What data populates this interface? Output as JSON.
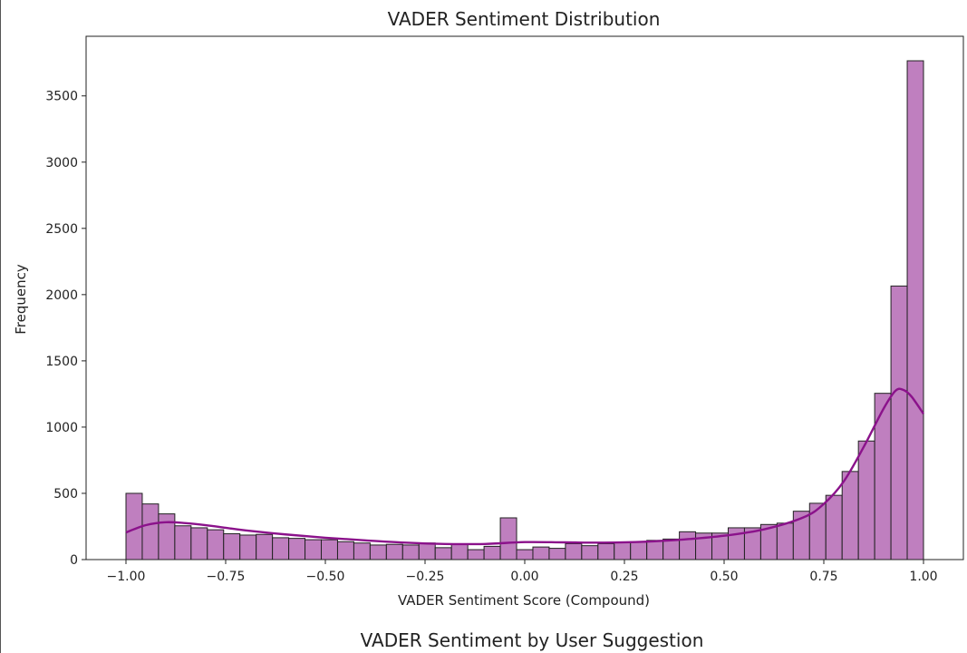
{
  "chart_data": {
    "type": "bar",
    "title": "VADER Sentiment Distribution",
    "xlabel": "VADER Sentiment Score (Compound)",
    "ylabel": "Frequency",
    "xlim": [
      -1.1,
      1.1
    ],
    "ylim": [
      0,
      3950
    ],
    "x_ticks": [
      -1.0,
      -0.75,
      -0.5,
      -0.25,
      0.0,
      0.25,
      0.5,
      0.75,
      1.0
    ],
    "x_tick_labels": [
      "−1.00",
      "−0.75",
      "−0.50",
      "−0.25",
      "0.00",
      "0.25",
      "0.50",
      "0.75",
      "1.00"
    ],
    "y_ticks": [
      0,
      500,
      1000,
      1500,
      2000,
      2500,
      3000,
      3500
    ],
    "y_tick_labels": [
      "0",
      "500",
      "1000",
      "1500",
      "2000",
      "2500",
      "3000",
      "3500"
    ],
    "grid": false,
    "bin_range": [
      -1.0,
      1.0
    ],
    "bin_counts": [
      500,
      420,
      345,
      255,
      240,
      225,
      195,
      185,
      190,
      165,
      160,
      150,
      150,
      135,
      125,
      110,
      115,
      110,
      125,
      90,
      115,
      75,
      100,
      315,
      75,
      95,
      85,
      120,
      105,
      120,
      130,
      130,
      145,
      155,
      210,
      200,
      200,
      240,
      240,
      265,
      275,
      365,
      425,
      485,
      665,
      895,
      1255,
      2065,
      3765
    ],
    "kde_points": [
      [
        -1.0,
        205
      ],
      [
        -0.95,
        260
      ],
      [
        -0.9,
        282
      ],
      [
        -0.85,
        275
      ],
      [
        -0.8,
        260
      ],
      [
        -0.75,
        240
      ],
      [
        -0.7,
        220
      ],
      [
        -0.6,
        190
      ],
      [
        -0.5,
        165
      ],
      [
        -0.4,
        145
      ],
      [
        -0.3,
        128
      ],
      [
        -0.2,
        118
      ],
      [
        -0.1,
        118
      ],
      [
        0.0,
        132
      ],
      [
        0.1,
        130
      ],
      [
        0.2,
        128
      ],
      [
        0.3,
        135
      ],
      [
        0.4,
        152
      ],
      [
        0.5,
        180
      ],
      [
        0.6,
        228
      ],
      [
        0.7,
        320
      ],
      [
        0.75,
        420
      ],
      [
        0.8,
        590
      ],
      [
        0.85,
        850
      ],
      [
        0.9,
        1140
      ],
      [
        0.93,
        1275
      ],
      [
        0.95,
        1280
      ],
      [
        0.97,
        1230
      ],
      [
        1.0,
        1100
      ]
    ],
    "bar_color": "#bf7fbf",
    "bar_edge_color": "#222222",
    "kde_color": "#8b128b"
  },
  "next_chart_title": "VADER Sentiment by User Suggestion"
}
